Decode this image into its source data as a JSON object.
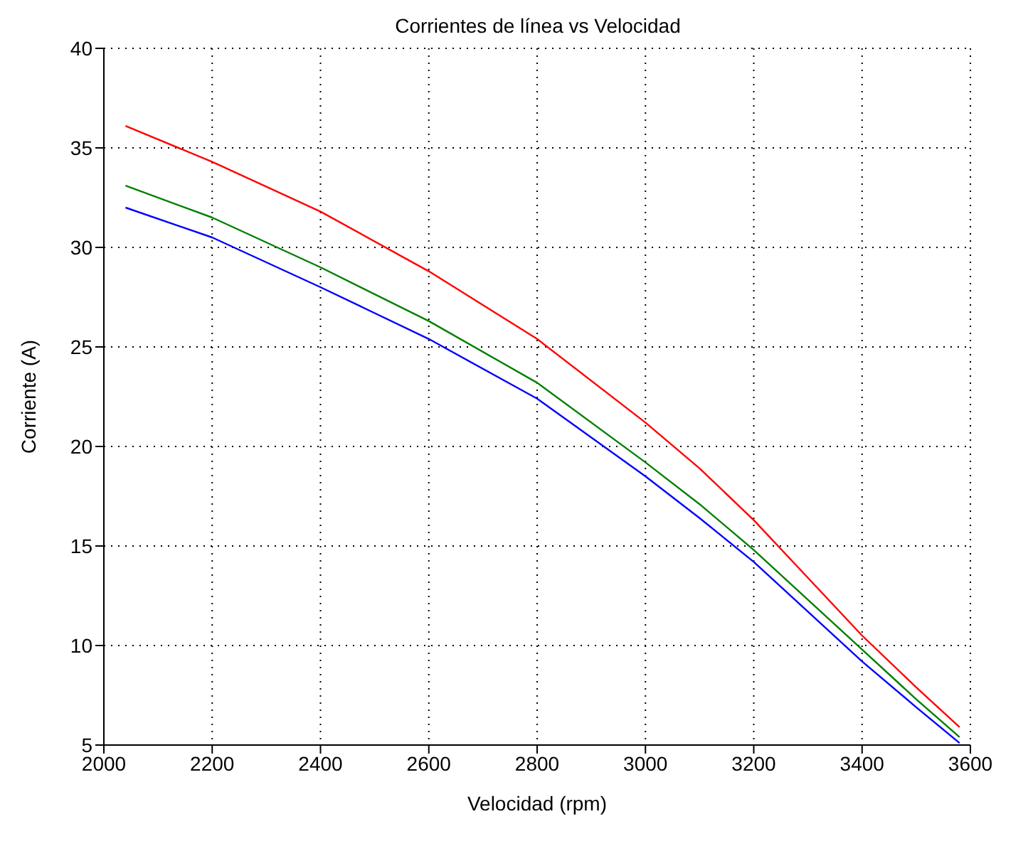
{
  "chart_data": {
    "type": "line",
    "title": "Corrientes de línea  vs  Velocidad",
    "xlabel": "Velocidad (rpm)",
    "ylabel": "Corriente (A)",
    "x": [
      2040,
      2200,
      2400,
      2600,
      2800,
      3000,
      3100,
      3200,
      3300,
      3400,
      3500,
      3580
    ],
    "series": [
      {
        "color": "#ff0000",
        "values": [
          36.1,
          34.3,
          31.8,
          28.8,
          25.4,
          21.2,
          18.9,
          16.3,
          13.4,
          10.5,
          7.9,
          5.9
        ]
      },
      {
        "color": "#008000",
        "values": [
          33.1,
          31.5,
          29.0,
          26.3,
          23.2,
          19.2,
          17.1,
          14.8,
          12.3,
          9.8,
          7.3,
          5.4
        ]
      },
      {
        "color": "#0000ff",
        "values": [
          32.0,
          30.5,
          28.0,
          25.4,
          22.4,
          18.5,
          16.4,
          14.2,
          11.7,
          9.2,
          6.9,
          5.1
        ]
      }
    ],
    "xlim": [
      2000,
      3600
    ],
    "xticks": [
      2000,
      2200,
      2400,
      2600,
      2800,
      3000,
      3200,
      3400,
      3600
    ],
    "ylim": [
      5,
      40
    ],
    "yticks": [
      5,
      10,
      15,
      20,
      25,
      30,
      35,
      40
    ],
    "grid": true,
    "legend": false,
    "marker": "none",
    "line_style": "solid"
  }
}
